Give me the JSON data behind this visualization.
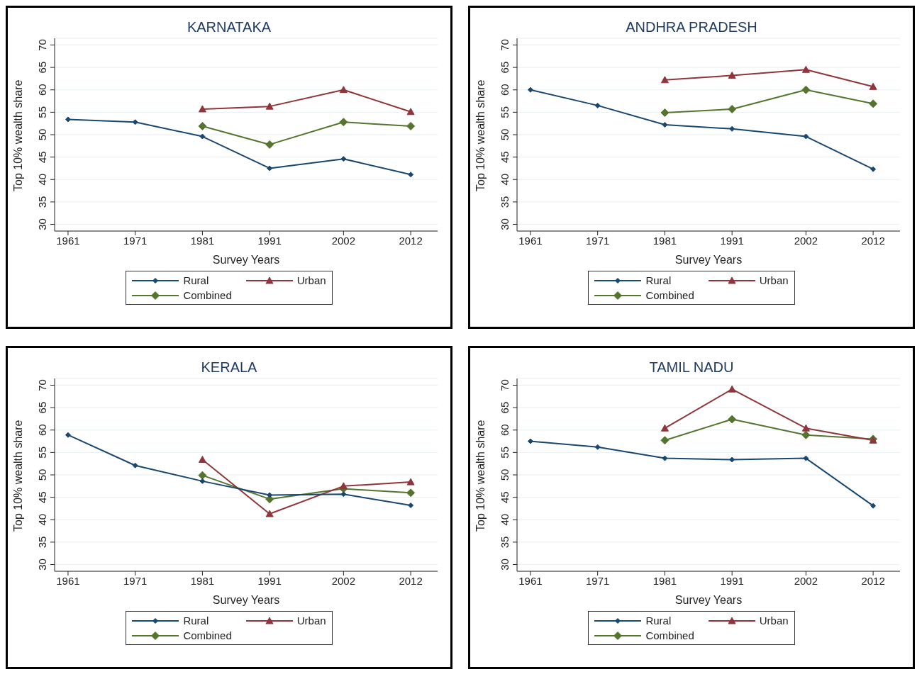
{
  "chart_data": [
    {
      "type": "line",
      "title": "KARNATAKA",
      "xlabel": "Survey Years",
      "ylabel": "Top 10% wealth share",
      "x": [
        1961,
        1971,
        1981,
        1991,
        2002,
        2012
      ],
      "xlim": [
        1959,
        2016
      ],
      "xticks": [
        1961,
        1971,
        1981,
        1991,
        2002,
        2012
      ],
      "ylim": [
        28.5,
        71.5
      ],
      "yticks": [
        30,
        35,
        40,
        45,
        50,
        55,
        60,
        65,
        70
      ],
      "grid": "y",
      "legend": "bottom",
      "line_style": "solid",
      "series": [
        {
          "name": "Rural",
          "color": "#1a476f",
          "marker": "diamond",
          "values": [
            53.4,
            52.8,
            49.6,
            42.5,
            44.6,
            41.1
          ]
        },
        {
          "name": "Urban",
          "color": "#90353b",
          "marker": "triangle",
          "values": [
            null,
            null,
            55.7,
            56.3,
            60.0,
            55.1
          ]
        },
        {
          "name": "Combined",
          "color": "#55752f",
          "marker": "diamond",
          "values": [
            null,
            null,
            51.9,
            47.8,
            52.8,
            51.9
          ]
        }
      ]
    },
    {
      "type": "line",
      "title": "ANDHRA PRADESH",
      "xlabel": "Survey Years",
      "ylabel": "Top 10% wealth share",
      "x": [
        1961,
        1971,
        1981,
        1991,
        2002,
        2012
      ],
      "xlim": [
        1959,
        2016
      ],
      "xticks": [
        1961,
        1971,
        1981,
        1991,
        2002,
        2012
      ],
      "ylim": [
        28.5,
        71.5
      ],
      "yticks": [
        30,
        35,
        40,
        45,
        50,
        55,
        60,
        65,
        70
      ],
      "grid": "y",
      "legend": "bottom",
      "line_style": "solid",
      "series": [
        {
          "name": "Rural",
          "color": "#1a476f",
          "marker": "diamond",
          "values": [
            60.0,
            56.5,
            52.2,
            51.3,
            49.6,
            42.3
          ]
        },
        {
          "name": "Urban",
          "color": "#90353b",
          "marker": "triangle",
          "values": [
            null,
            null,
            62.2,
            63.2,
            64.5,
            60.7
          ]
        },
        {
          "name": "Combined",
          "color": "#55752f",
          "marker": "diamond",
          "values": [
            null,
            null,
            54.9,
            55.7,
            60.0,
            56.9
          ]
        }
      ]
    },
    {
      "type": "line",
      "title": "KERALA",
      "xlabel": "Survey Years",
      "ylabel": "Top 10% wealth share",
      "x": [
        1961,
        1971,
        1981,
        1991,
        2002,
        2012
      ],
      "xlim": [
        1959,
        2016
      ],
      "xticks": [
        1961,
        1971,
        1981,
        1991,
        2002,
        2012
      ],
      "ylim": [
        28.5,
        71.5
      ],
      "yticks": [
        30,
        35,
        40,
        45,
        50,
        55,
        60,
        65,
        70
      ],
      "grid": "y",
      "legend": "bottom",
      "line_style": "solid",
      "series": [
        {
          "name": "Rural",
          "color": "#1a476f",
          "marker": "diamond",
          "values": [
            58.9,
            52.1,
            48.6,
            45.5,
            45.7,
            43.2
          ]
        },
        {
          "name": "Urban",
          "color": "#90353b",
          "marker": "triangle",
          "values": [
            null,
            null,
            53.4,
            41.3,
            47.5,
            48.4
          ]
        },
        {
          "name": "Combined",
          "color": "#55752f",
          "marker": "diamond",
          "values": [
            null,
            null,
            49.9,
            44.6,
            46.9,
            46.0
          ]
        }
      ]
    },
    {
      "type": "line",
      "title": "TAMIL NADU",
      "xlabel": "Survey Years",
      "ylabel": "Top 10% wealth share",
      "x": [
        1961,
        1971,
        1981,
        1991,
        2002,
        2012
      ],
      "xlim": [
        1959,
        2016
      ],
      "xticks": [
        1961,
        1971,
        1981,
        1991,
        2002,
        2012
      ],
      "ylim": [
        28.5,
        71.5
      ],
      "yticks": [
        30,
        35,
        40,
        45,
        50,
        55,
        60,
        65,
        70
      ],
      "grid": "y",
      "legend": "bottom",
      "line_style": "solid",
      "series": [
        {
          "name": "Rural",
          "color": "#1a476f",
          "marker": "diamond",
          "values": [
            57.5,
            56.2,
            53.7,
            53.4,
            53.7,
            43.1
          ]
        },
        {
          "name": "Urban",
          "color": "#90353b",
          "marker": "triangle",
          "values": [
            null,
            null,
            60.4,
            69.1,
            60.4,
            57.7
          ]
        },
        {
          "name": "Combined",
          "color": "#55752f",
          "marker": "diamond",
          "values": [
            null,
            null,
            57.7,
            62.4,
            58.9,
            58.0
          ]
        }
      ]
    }
  ]
}
